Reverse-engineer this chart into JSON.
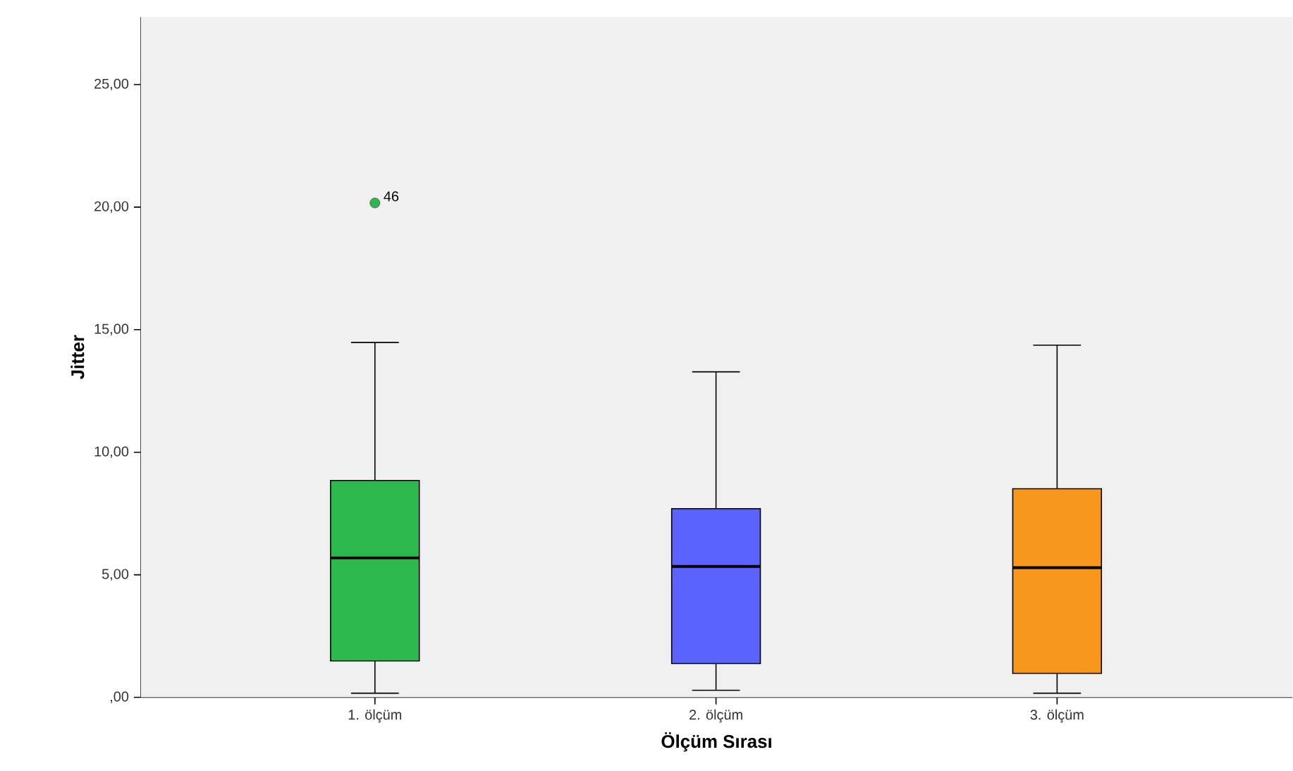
{
  "chart_data": {
    "type": "box",
    "xlabel": "Ölçüm Sırası",
    "ylabel": "Jitter",
    "categories": [
      "1. ölçüm",
      "2. ölçüm",
      "3. ölçüm"
    ],
    "colors": [
      "#2db84d",
      "#5b63ff",
      "#f7981d"
    ],
    "boxes": [
      {
        "low": 0.17,
        "q1": 1.49,
        "median": 5.69,
        "q3": 8.85,
        "high": 14.48,
        "outliers": [
          20.17
        ]
      },
      {
        "low": 0.29,
        "q1": 1.38,
        "median": 5.34,
        "q3": 7.7,
        "high": 13.28
      },
      {
        "low": 0.17,
        "q1": 0.98,
        "median": 5.29,
        "q3": 8.51,
        "high": 14.37
      }
    ],
    "ylim": [
      0,
      27.76
    ],
    "yticks": [
      {
        "value": 0,
        "label": ",00"
      },
      {
        "value": 5,
        "label": "5,00"
      },
      {
        "value": 10,
        "label": "10,00"
      },
      {
        "value": 15,
        "label": "15,00"
      },
      {
        "value": 20,
        "label": "20,00"
      },
      {
        "value": 25,
        "label": "25,00"
      }
    ],
    "annotations": [
      "46"
    ]
  }
}
